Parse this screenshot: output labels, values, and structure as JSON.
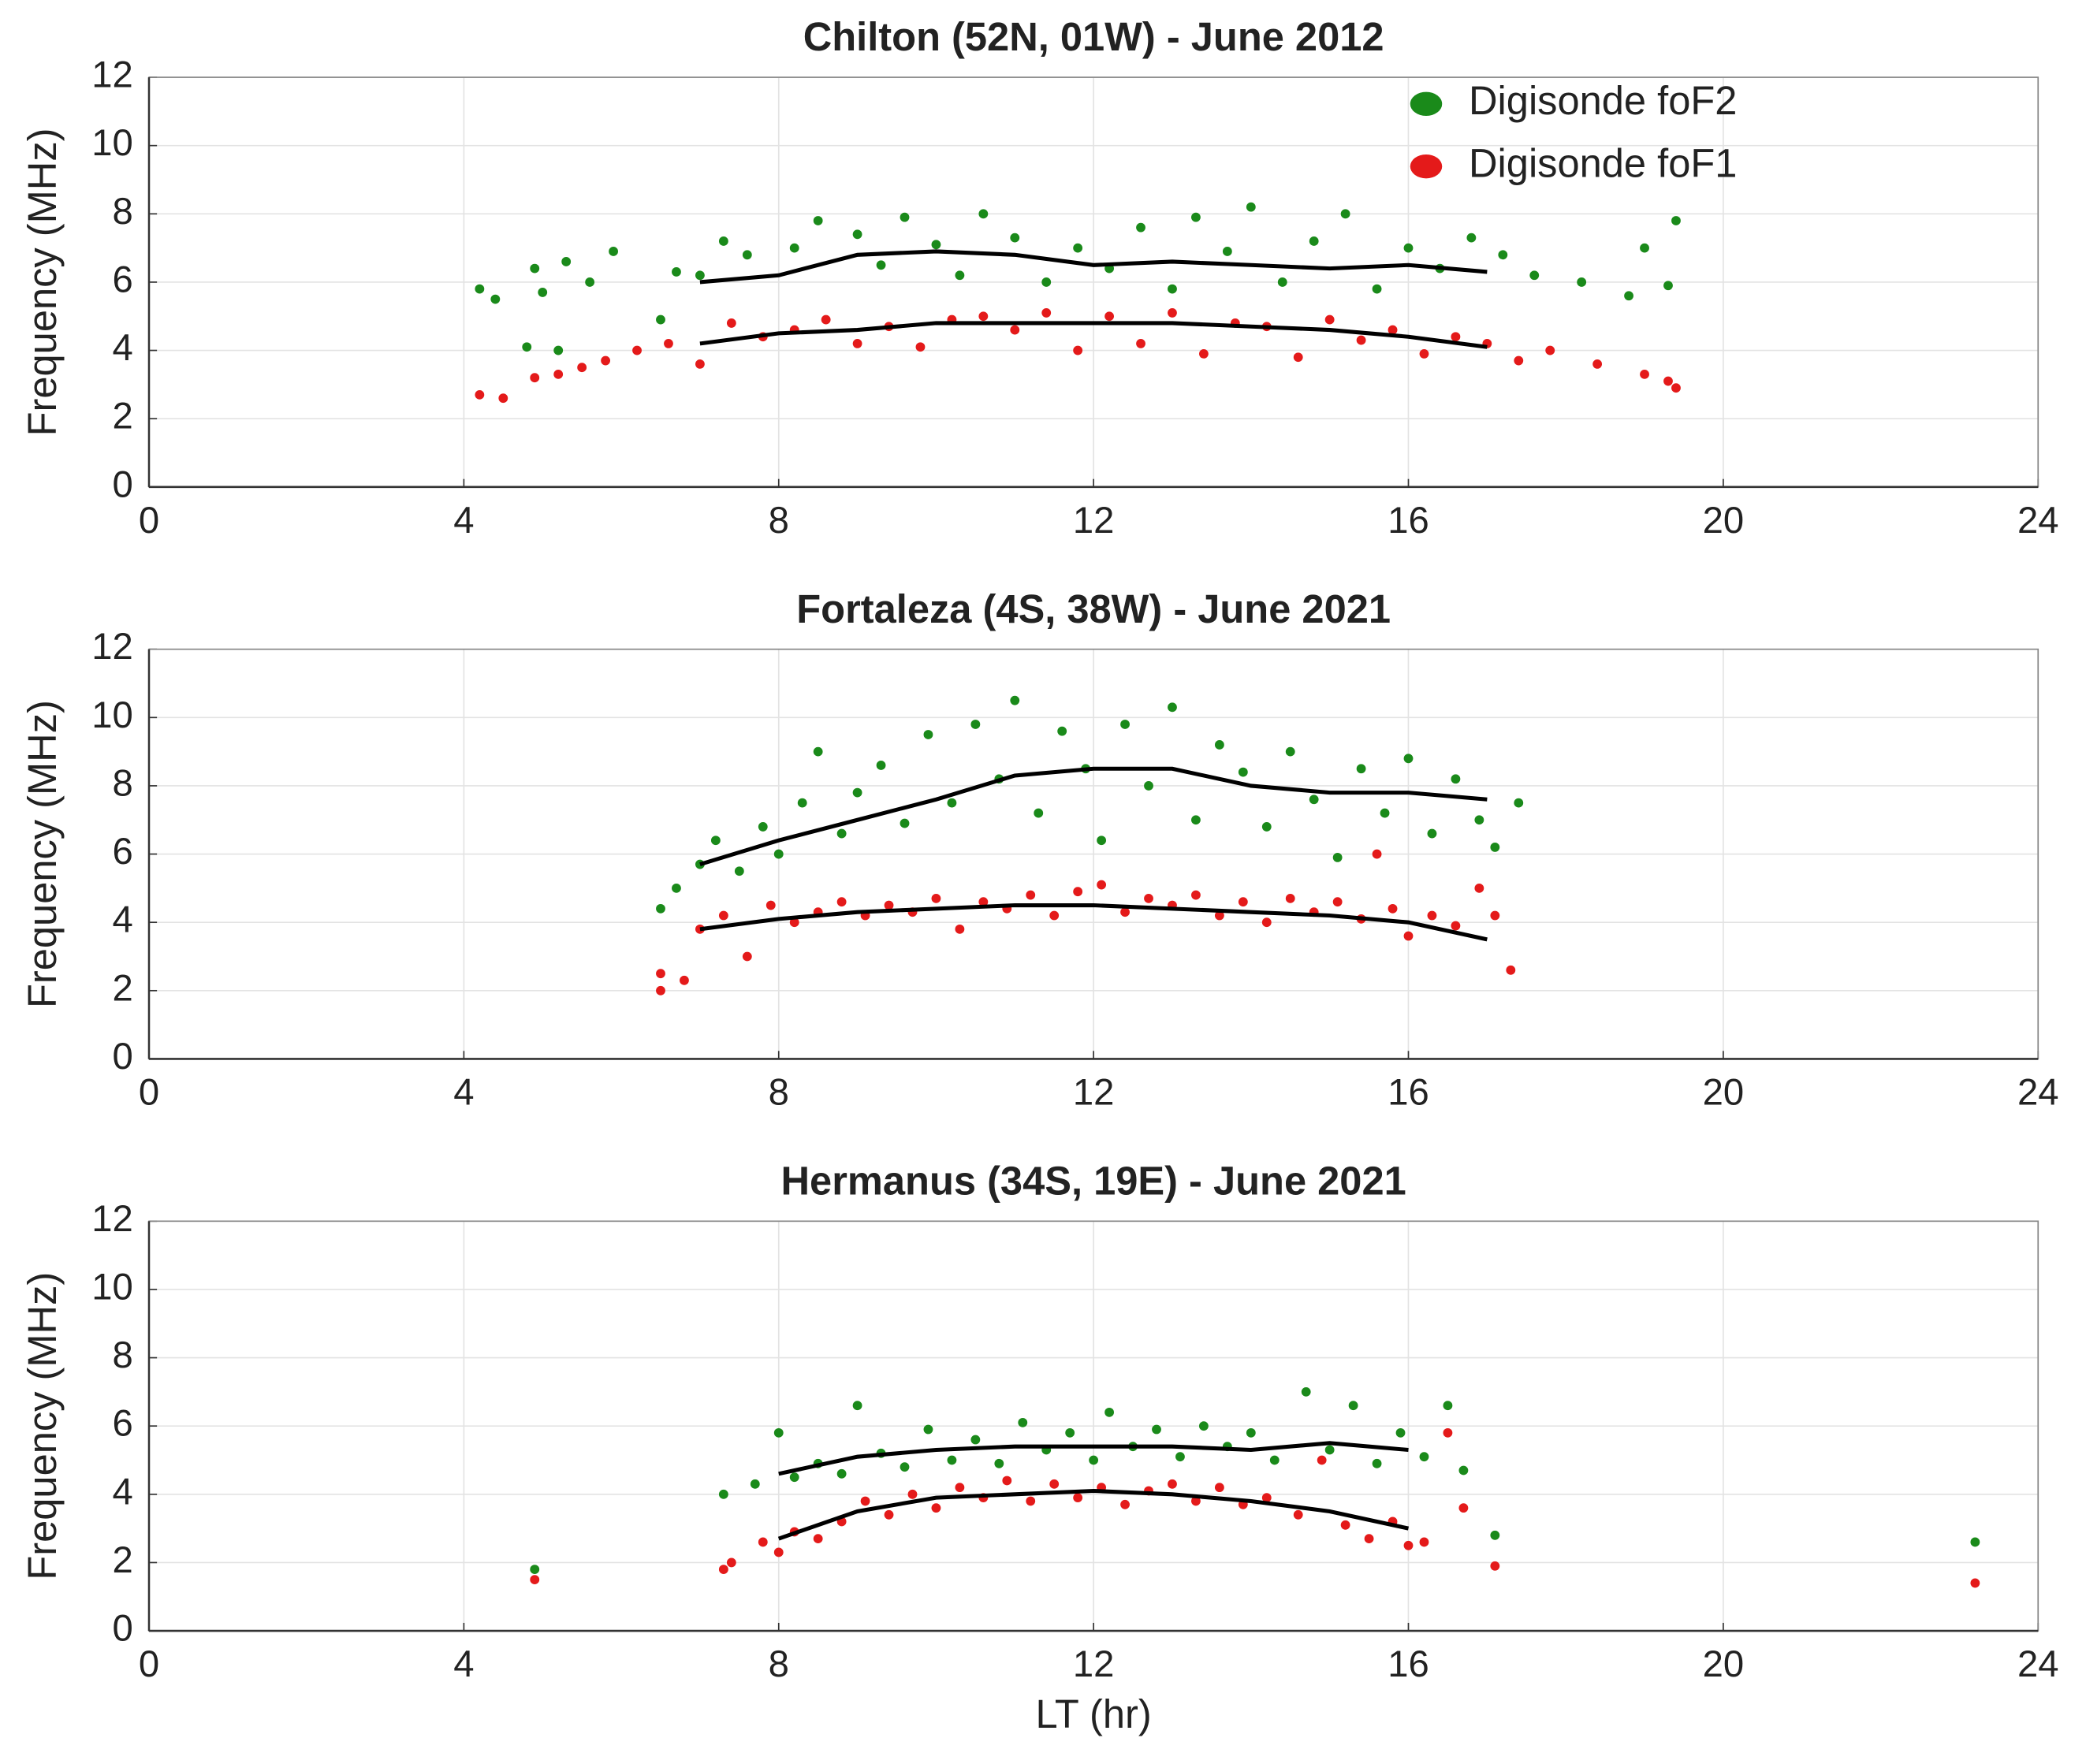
{
  "chart_data": [
    {
      "type": "scatter",
      "title": "Chilton (52N, 01W) - June 2012",
      "ylabel": "Frequency (MHz)",
      "xlim": [
        0,
        24
      ],
      "xticks": [
        0,
        4,
        8,
        12,
        16,
        20,
        24
      ],
      "ylim": [
        0,
        12
      ],
      "yticks": [
        0,
        2,
        4,
        6,
        8,
        10,
        12
      ],
      "grid": true,
      "legend": "upper right",
      "series": [
        {
          "name": "Digisonde foF2",
          "color": "#1a8a1a",
          "x": [
            4.2,
            4.4,
            4.8,
            4.9,
            5.0,
            5.2,
            5.3,
            5.6,
            5.9,
            6.5,
            6.7,
            7.0,
            7.3,
            7.6,
            8.2,
            8.5,
            9.0,
            9.3,
            9.6,
            10.0,
            10.3,
            10.6,
            11.0,
            11.4,
            11.8,
            12.2,
            12.6,
            13.0,
            13.3,
            13.7,
            14.0,
            14.4,
            14.8,
            15.2,
            15.6,
            16.0,
            16.4,
            16.8,
            17.2,
            17.6,
            18.2,
            18.8,
            19.0,
            19.4,
            19.3
          ],
          "y": [
            5.8,
            5.5,
            4.1,
            6.4,
            5.7,
            4.0,
            6.6,
            6.0,
            6.9,
            4.9,
            6.3,
            6.2,
            7.2,
            6.8,
            7.0,
            7.8,
            7.4,
            6.5,
            7.9,
            7.1,
            6.2,
            8.0,
            7.3,
            6.0,
            7.0,
            6.4,
            7.6,
            5.8,
            7.9,
            6.9,
            8.2,
            6.0,
            7.2,
            8.0,
            5.8,
            7.0,
            6.4,
            7.3,
            6.8,
            6.2,
            6.0,
            5.6,
            7.0,
            7.8,
            5.9
          ]
        },
        {
          "name": "Digisonde foF1",
          "color": "#e41a1a",
          "x": [
            4.2,
            4.5,
            4.9,
            5.2,
            5.5,
            5.8,
            6.2,
            6.6,
            7.0,
            7.4,
            7.8,
            8.2,
            8.6,
            9.0,
            9.4,
            9.8,
            10.2,
            10.6,
            11.0,
            11.4,
            11.8,
            12.2,
            12.6,
            13.0,
            13.4,
            13.8,
            14.2,
            14.6,
            15.0,
            15.4,
            15.8,
            16.2,
            16.6,
            17.0,
            17.4,
            17.8,
            18.4,
            19.0,
            19.3,
            19.4
          ],
          "y": [
            2.7,
            2.6,
            3.2,
            3.3,
            3.5,
            3.7,
            4.0,
            4.2,
            3.6,
            4.8,
            4.4,
            4.6,
            4.9,
            4.2,
            4.7,
            4.1,
            4.9,
            5.0,
            4.6,
            5.1,
            4.0,
            5.0,
            4.2,
            5.1,
            3.9,
            4.8,
            4.7,
            3.8,
            4.9,
            4.3,
            4.6,
            3.9,
            4.4,
            4.2,
            3.7,
            4.0,
            3.6,
            3.3,
            3.1,
            2.9
          ]
        }
      ],
      "lines": [
        {
          "color": "#000000",
          "x": [
            7,
            8,
            9,
            10,
            11,
            12,
            13,
            14,
            15,
            16,
            17
          ],
          "y": [
            6.0,
            6.2,
            6.8,
            6.9,
            6.8,
            6.5,
            6.6,
            6.5,
            6.4,
            6.5,
            6.3
          ]
        },
        {
          "color": "#000000",
          "x": [
            7,
            8,
            9,
            10,
            11,
            12,
            13,
            14,
            15,
            16,
            17
          ],
          "y": [
            4.2,
            4.5,
            4.6,
            4.8,
            4.8,
            4.8,
            4.8,
            4.7,
            4.6,
            4.4,
            4.1
          ]
        }
      ]
    },
    {
      "type": "scatter",
      "title": "Fortaleza (4S, 38W) - June 2021",
      "ylabel": "Frequency (MHz)",
      "xlim": [
        0,
        24
      ],
      "xticks": [
        0,
        4,
        8,
        12,
        16,
        20,
        24
      ],
      "ylim": [
        0,
        12
      ],
      "yticks": [
        0,
        2,
        4,
        6,
        8,
        10,
        12
      ],
      "grid": true,
      "series": [
        {
          "color": "#1a8a1a",
          "x": [
            6.5,
            6.7,
            7.0,
            7.2,
            7.5,
            7.8,
            8.0,
            8.3,
            8.5,
            8.8,
            9.0,
            9.3,
            9.6,
            9.9,
            10.2,
            10.5,
            10.8,
            11.0,
            11.3,
            11.6,
            11.9,
            12.1,
            12.4,
            12.7,
            13.0,
            13.3,
            13.6,
            13.9,
            14.2,
            14.5,
            14.8,
            15.1,
            15.4,
            15.7,
            16.0,
            16.3,
            16.6,
            16.9,
            17.1,
            17.4
          ],
          "y": [
            4.4,
            5.0,
            5.7,
            6.4,
            5.5,
            6.8,
            6.0,
            7.5,
            9.0,
            6.6,
            7.8,
            8.6,
            6.9,
            9.5,
            7.5,
            9.8,
            8.2,
            10.5,
            7.2,
            9.6,
            8.5,
            6.4,
            9.8,
            8.0,
            10.3,
            7.0,
            9.2,
            8.4,
            6.8,
            9.0,
            7.6,
            5.9,
            8.5,
            7.2,
            8.8,
            6.6,
            8.2,
            7.0,
            6.2,
            7.5
          ]
        },
        {
          "color": "#e41a1a",
          "x": [
            6.5,
            6.5,
            6.8,
            7.0,
            7.3,
            7.6,
            7.9,
            8.2,
            8.5,
            8.8,
            9.1,
            9.4,
            9.7,
            10.0,
            10.3,
            10.6,
            10.9,
            11.2,
            11.5,
            11.8,
            12.1,
            12.4,
            12.7,
            13.0,
            13.3,
            13.6,
            13.9,
            14.2,
            14.5,
            14.8,
            15.1,
            15.4,
            15.6,
            15.8,
            16.0,
            16.3,
            16.6,
            16.9,
            17.1,
            17.3
          ],
          "y": [
            2.0,
            2.5,
            2.3,
            3.8,
            4.2,
            3.0,
            4.5,
            4.0,
            4.3,
            4.6,
            4.2,
            4.5,
            4.3,
            4.7,
            3.8,
            4.6,
            4.4,
            4.8,
            4.2,
            4.9,
            5.1,
            4.3,
            4.7,
            4.5,
            4.8,
            4.2,
            4.6,
            4.0,
            4.7,
            4.3,
            4.6,
            4.1,
            6.0,
            4.4,
            3.6,
            4.2,
            3.9,
            5.0,
            4.2,
            2.6
          ]
        }
      ],
      "lines": [
        {
          "color": "#000000",
          "x": [
            7,
            8,
            9,
            10,
            11,
            12,
            13,
            14,
            15,
            16,
            17
          ],
          "y": [
            5.7,
            6.4,
            7.0,
            7.6,
            8.3,
            8.5,
            8.5,
            8.0,
            7.8,
            7.8,
            7.6
          ]
        },
        {
          "color": "#000000",
          "x": [
            7,
            8,
            9,
            10,
            11,
            12,
            13,
            14,
            15,
            16,
            17
          ],
          "y": [
            3.8,
            4.1,
            4.3,
            4.4,
            4.5,
            4.5,
            4.4,
            4.3,
            4.2,
            4.0,
            3.5
          ]
        }
      ]
    },
    {
      "type": "scatter",
      "title": "Hermanus (34S, 19E) - June 2021",
      "ylabel": "Frequency (MHz)",
      "xlabel": "LT (hr)",
      "xlim": [
        0,
        24
      ],
      "xticks": [
        0,
        4,
        8,
        12,
        16,
        20,
        24
      ],
      "ylim": [
        0,
        12
      ],
      "yticks": [
        0,
        2,
        4,
        6,
        8,
        10,
        12
      ],
      "grid": true,
      "series": [
        {
          "color": "#1a8a1a",
          "x": [
            4.9,
            7.3,
            7.7,
            8.0,
            8.2,
            8.5,
            8.8,
            9.0,
            9.3,
            9.6,
            9.9,
            10.2,
            10.5,
            10.8,
            11.1,
            11.4,
            11.7,
            12.0,
            12.2,
            12.5,
            12.8,
            13.1,
            13.4,
            13.7,
            14.0,
            14.3,
            14.7,
            15.0,
            15.3,
            15.6,
            15.9,
            16.2,
            16.5,
            16.7,
            17.1,
            23.2
          ],
          "y": [
            1.8,
            4.0,
            4.3,
            5.8,
            4.5,
            4.9,
            4.6,
            6.6,
            5.2,
            4.8,
            5.9,
            5.0,
            5.6,
            4.9,
            6.1,
            5.3,
            5.8,
            5.0,
            6.4,
            5.4,
            5.9,
            5.1,
            6.0,
            5.4,
            5.8,
            5.0,
            7.0,
            5.3,
            6.6,
            4.9,
            5.8,
            5.1,
            6.6,
            4.7,
            2.8,
            2.6
          ]
        },
        {
          "color": "#e41a1a",
          "x": [
            4.9,
            7.3,
            7.4,
            7.8,
            8.0,
            8.2,
            8.5,
            8.8,
            9.1,
            9.4,
            9.7,
            10.0,
            10.3,
            10.6,
            10.9,
            11.2,
            11.5,
            11.8,
            12.1,
            12.4,
            12.7,
            13.0,
            13.3,
            13.6,
            13.9,
            14.2,
            14.6,
            14.9,
            15.2,
            15.5,
            15.8,
            16.0,
            16.2,
            16.5,
            16.7,
            17.1,
            23.2
          ],
          "y": [
            1.5,
            1.8,
            2.0,
            2.6,
            2.3,
            2.9,
            2.7,
            3.2,
            3.8,
            3.4,
            4.0,
            3.6,
            4.2,
            3.9,
            4.4,
            3.8,
            4.3,
            3.9,
            4.2,
            3.7,
            4.1,
            4.3,
            3.8,
            4.2,
            3.7,
            3.9,
            3.4,
            5.0,
            3.1,
            2.7,
            3.2,
            2.5,
            2.6,
            5.8,
            3.6,
            1.9,
            1.4
          ]
        }
      ],
      "lines": [
        {
          "color": "#000000",
          "x": [
            8,
            9,
            10,
            11,
            12,
            13,
            14,
            15,
            16
          ],
          "y": [
            4.6,
            5.1,
            5.3,
            5.4,
            5.4,
            5.4,
            5.3,
            5.5,
            5.3
          ]
        },
        {
          "color": "#000000",
          "x": [
            8,
            9,
            10,
            11,
            12,
            13,
            14,
            15,
            16
          ],
          "y": [
            2.7,
            3.5,
            3.9,
            4.0,
            4.1,
            4.0,
            3.8,
            3.5,
            3.0
          ]
        }
      ]
    }
  ]
}
